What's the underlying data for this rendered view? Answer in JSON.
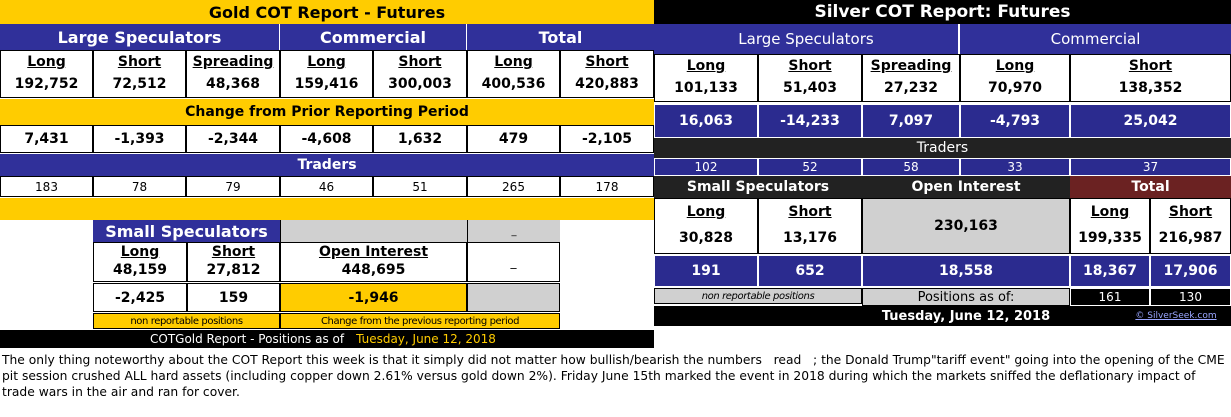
{
  "gold": {
    "title": "Gold COT Report - Futures",
    "large_speculators": "Large Speculators",
    "commercial": "Commercial",
    "total": "Total",
    "col_headers": [
      "Long",
      "Short",
      "Spreading",
      "Long",
      "Short",
      "Long",
      "Short"
    ],
    "positions": [
      "192,752",
      "72,512",
      "48,368",
      "159,416",
      "300,003",
      "400,536",
      "420,883"
    ],
    "change_title": "Change from Prior Reporting Period",
    "changes": [
      "7,431",
      "-1,393",
      "-2,344",
      "-4,608",
      "1,632",
      "479",
      "-2,105"
    ],
    "traders_title": "Traders",
    "traders": [
      "183",
      "78",
      "79",
      "46",
      "51",
      "265",
      "178"
    ],
    "small_speculators": "Small Speculators",
    "small_headers": [
      "Long",
      "Short"
    ],
    "small_positions": [
      "48,159",
      "27,812"
    ],
    "small_changes": [
      "-2,425",
      "159"
    ],
    "open_interest_label": "Open Interest",
    "open_interest": "448,695",
    "open_interest_change": "-1,946",
    "dash_top": "_",
    "dash_mid": "_",
    "non_reportable": "non reportable positions",
    "change_note": "Change from the previous reporting period",
    "footer_label": "COTGold Report - Positions as of",
    "footer_date": "Tuesday, June 12, 2018"
  },
  "silver": {
    "title": "Silver COT Report: Futures",
    "large_speculators": "Large Speculators",
    "commercial": "Commercial",
    "col_headers": [
      "Long",
      "Short",
      "Spreading",
      "Long",
      "Short"
    ],
    "positions": [
      "101,133",
      "51,403",
      "27,232",
      "70,970",
      "138,352"
    ],
    "changes": [
      "16,063",
      "-14,233",
      "7,097",
      "-4,793",
      "25,042"
    ],
    "traders_title": "Traders",
    "traders": [
      "102",
      "52",
      "58",
      "33",
      "37"
    ],
    "small_speculators": "Small Speculators",
    "open_interest_label": "Open Interest",
    "total": "Total",
    "small_headers": [
      "Long",
      "Short"
    ],
    "small_positions": [
      "30,828",
      "13,176"
    ],
    "open_interest": "230,163",
    "total_headers": [
      "Long",
      "Short"
    ],
    "total_positions": [
      "199,335",
      "216,987"
    ],
    "small_changes": [
      "191",
      "652"
    ],
    "open_interest_change": "18,558",
    "total_changes": [
      "18,367",
      "17,906"
    ],
    "non_reportable": "non reportable positions",
    "positions_as_of": "Positions as of:",
    "total_traders": [
      "161",
      "130"
    ],
    "footer_date": "Tuesday, June 12, 2018",
    "credit": "© SilverSeek.com"
  },
  "commentary": "The only thing noteworthy about the COT Report this week is that it simply did not matter how bullish/bearish the numbers   read   ; the Donald Trump\"tariff event\" going into the opening of the CME pit session crushed ALL hard assets (including copper down 2.61% versus gold down 2%). Friday June 15th marked the event in 2018 during which the markets sniffed the deflationary impact of trade wars in the air and ran for cover.",
  "colors": {
    "gold_accent": "#ffcc00",
    "navy": "#30309a",
    "gray": "#d0d0d0",
    "maroon": "#6b2222",
    "black": "#000000"
  }
}
